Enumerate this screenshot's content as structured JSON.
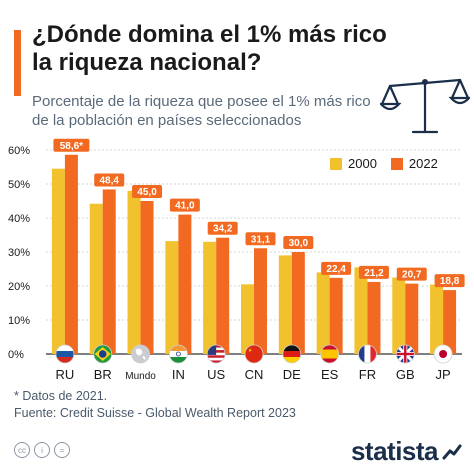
{
  "header": {
    "title": "¿Dónde domina el 1% más rico la riqueza nacional?",
    "subtitle": "Porcentaje de la riqueza que posee el 1% más rico de la población en países seleccionados"
  },
  "legend": {
    "y2000": "2000",
    "y2022": "2022"
  },
  "footnote": {
    "note": "* Datos de 2021.",
    "source": "Fuente: Credit Suisse - Global Wealth Report 2023"
  },
  "footer": {
    "brand": "statista",
    "license_cc": "cc",
    "license_i": "i",
    "license_eq": "="
  },
  "colors": {
    "y2000": "#f2c12e",
    "y2022": "#f26a21",
    "label_bg": "#f26a21",
    "grid": "#d6d6d6",
    "text": "#1a1a1a"
  },
  "chart_data": {
    "type": "bar",
    "categories": [
      "RU",
      "BR",
      "Mundo",
      "IN",
      "US",
      "CN",
      "DE",
      "ES",
      "FR",
      "GB",
      "JP"
    ],
    "flags": [
      "russia-flag",
      "brazil-flag",
      "world-globe",
      "india-flag",
      "usa-flag",
      "china-flag",
      "germany-flag",
      "spain-flag",
      "france-flag",
      "uk-flag",
      "japan-flag"
    ],
    "series": [
      {
        "name": "2000",
        "values": [
          54.5,
          44.2,
          48.0,
          33.2,
          33.0,
          20.5,
          29.0,
          24.0,
          25.5,
          22.5,
          20.4
        ]
      },
      {
        "name": "2022",
        "values": [
          58.6,
          48.4,
          45.0,
          41.0,
          34.2,
          31.1,
          30.0,
          22.4,
          21.2,
          20.7,
          18.8
        ]
      }
    ],
    "data_labels": [
      "58,6*",
      "48,4",
      "45,0",
      "41,0",
      "34,2",
      "31,1",
      "30,0",
      "22,4",
      "21,2",
      "20,7",
      "18,8"
    ],
    "yticks": [
      "0%",
      "10%",
      "20%",
      "30%",
      "40%",
      "50%",
      "60%"
    ],
    "ylim": [
      0,
      60
    ],
    "grid": true,
    "legend_position": "top-right"
  }
}
